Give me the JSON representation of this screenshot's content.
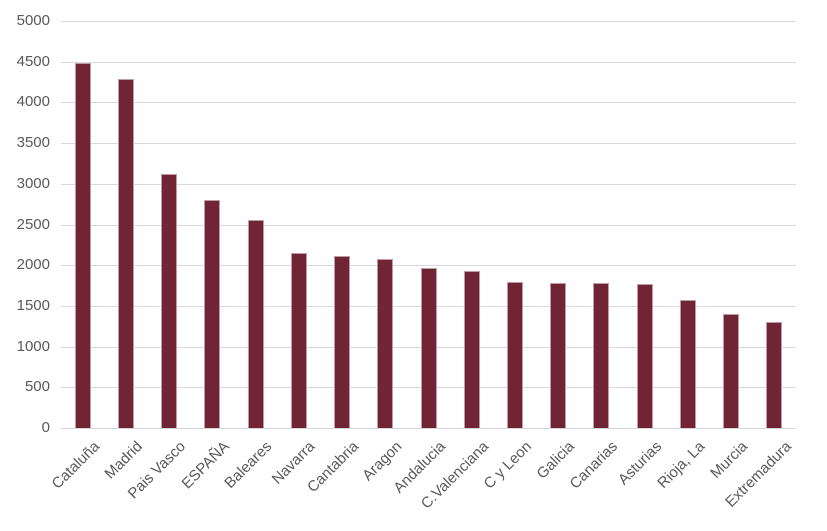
{
  "chart_data": {
    "type": "bar",
    "title": "",
    "xlabel": "",
    "ylabel": "",
    "categories": [
      "Cataluña",
      "Madrid",
      "Pais Vasco",
      "ESPAÑA",
      "Baleares",
      "Navarra",
      "Cantabria",
      "Aragon",
      "Andalucia",
      "C.Valenciana",
      "C y Leon",
      "Galicia",
      "Canarias",
      "Asturias",
      "Rioja, La",
      "Murcia",
      "Extremadura"
    ],
    "values": [
      4480,
      4290,
      3120,
      2805,
      2560,
      2150,
      2110,
      2080,
      1960,
      1930,
      1790,
      1785,
      1780,
      1775,
      1570,
      1400,
      1300
    ],
    "ylim": [
      0,
      5000
    ],
    "y_ticks": [
      0,
      500,
      1000,
      1500,
      2000,
      2500,
      3000,
      3500,
      4000,
      4500,
      5000
    ],
    "grid": true,
    "legend": false,
    "bar_color": "#702435",
    "gridline_color": "#d9d9d9",
    "axis_line_color": "#d6d6d6",
    "tick_label_color": "#595959",
    "background_color": "#ffffff"
  }
}
